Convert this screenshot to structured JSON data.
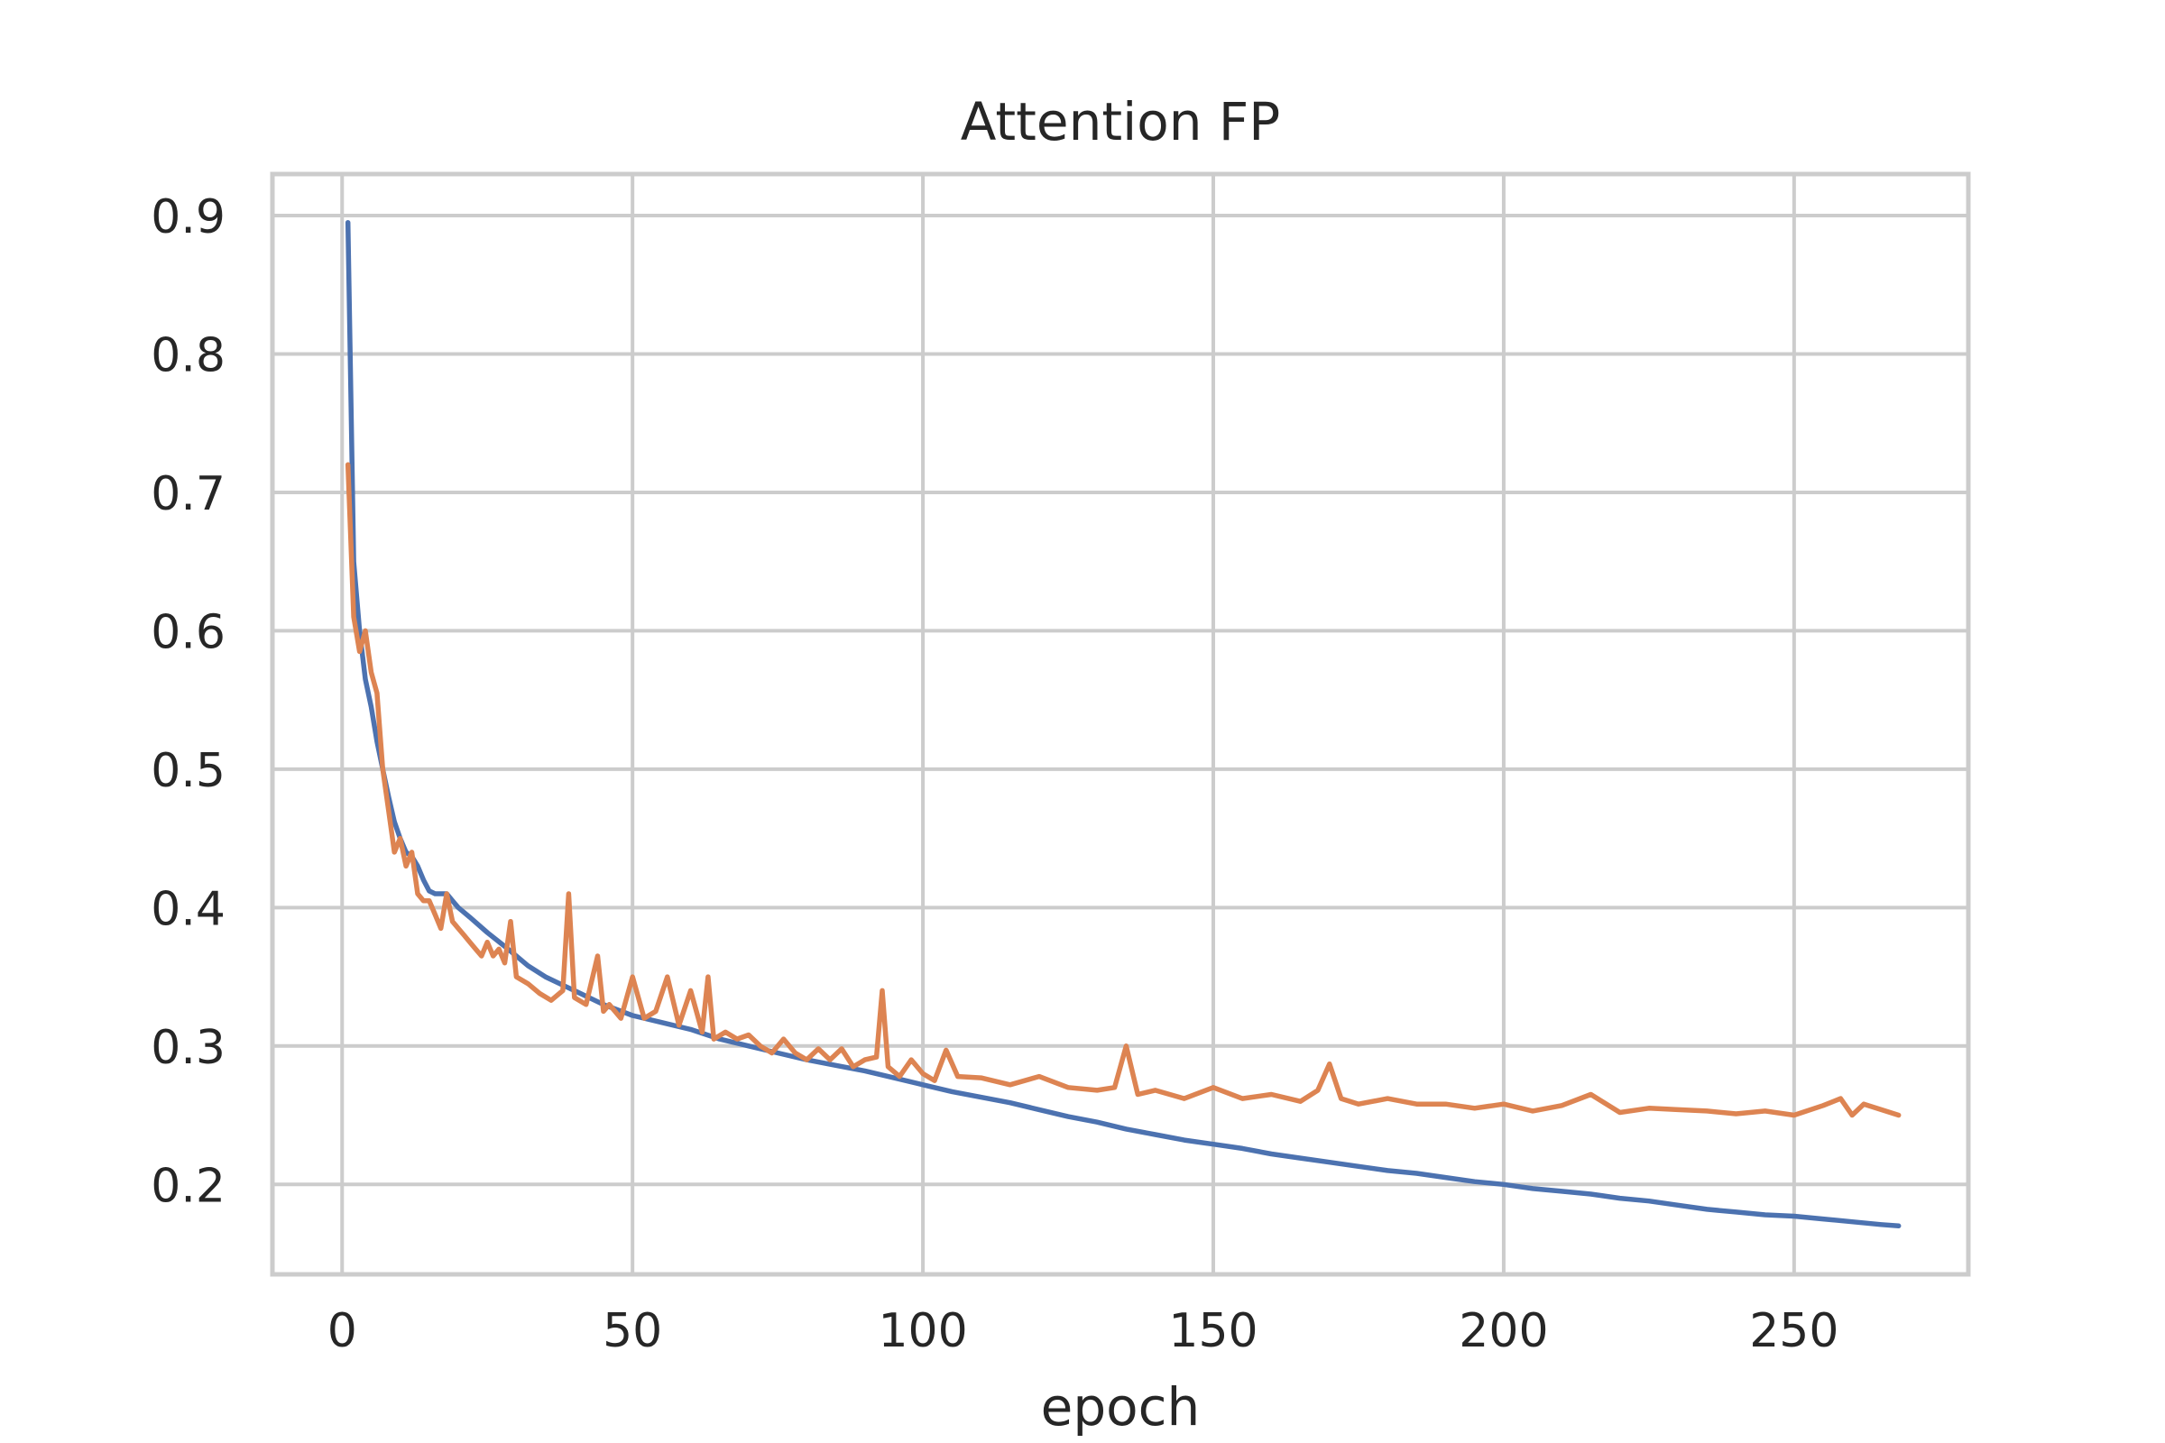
{
  "chart_data": {
    "type": "line",
    "title": "Attention FP",
    "xlabel": "epoch",
    "ylabel": "",
    "xlim": [
      -12,
      280
    ],
    "ylim": [
      0.135,
      0.93
    ],
    "xticks": [
      0,
      50,
      100,
      150,
      200,
      250
    ],
    "xtick_labels": [
      "0",
      "50",
      "100",
      "150",
      "200",
      "250"
    ],
    "yticks": [
      0.2,
      0.3,
      0.4,
      0.5,
      0.6,
      0.7,
      0.8,
      0.9
    ],
    "ytick_labels": [
      "0.2",
      "0.3",
      "0.4",
      "0.5",
      "0.6",
      "0.7",
      "0.8",
      "0.9"
    ],
    "grid": true,
    "legend": "none",
    "series": [
      {
        "color": "#4c72b0",
        "x": [
          1,
          2,
          3,
          4,
          5,
          6,
          7,
          8,
          9,
          10,
          11,
          12,
          13,
          14,
          15,
          16,
          17,
          18,
          19,
          20,
          22,
          25,
          28,
          30,
          32,
          35,
          38,
          40,
          45,
          50,
          55,
          60,
          65,
          70,
          75,
          80,
          85,
          90,
          95,
          100,
          105,
          110,
          115,
          120,
          125,
          130,
          135,
          140,
          145,
          150,
          155,
          160,
          165,
          170,
          175,
          180,
          185,
          190,
          195,
          200,
          205,
          210,
          215,
          220,
          225,
          230,
          235,
          240,
          245,
          250,
          255,
          260,
          265,
          268
        ],
        "y": [
          0.895,
          0.65,
          0.6,
          0.565,
          0.545,
          0.52,
          0.5,
          0.48,
          0.462,
          0.45,
          0.44,
          0.437,
          0.43,
          0.42,
          0.412,
          0.41,
          0.41,
          0.41,
          0.405,
          0.4,
          0.393,
          0.382,
          0.372,
          0.365,
          0.358,
          0.35,
          0.344,
          0.34,
          0.33,
          0.322,
          0.317,
          0.312,
          0.305,
          0.3,
          0.295,
          0.29,
          0.286,
          0.282,
          0.277,
          0.272,
          0.267,
          0.263,
          0.259,
          0.254,
          0.249,
          0.245,
          0.24,
          0.236,
          0.232,
          0.229,
          0.226,
          0.222,
          0.219,
          0.216,
          0.213,
          0.21,
          0.208,
          0.205,
          0.202,
          0.2,
          0.197,
          0.195,
          0.193,
          0.19,
          0.188,
          0.185,
          0.182,
          0.18,
          0.178,
          0.177,
          0.175,
          0.173,
          0.171,
          0.17
        ]
      },
      {
        "color": "#dd8452",
        "x": [
          1,
          2,
          3,
          4,
          5,
          6,
          7,
          8,
          9,
          10,
          11,
          12,
          13,
          14,
          15,
          16,
          17,
          18,
          19,
          20,
          21,
          22,
          23,
          24,
          25,
          26,
          27,
          28,
          29,
          30,
          32,
          34,
          36,
          38,
          39,
          40,
          42,
          44,
          45,
          46,
          48,
          50,
          52,
          54,
          56,
          58,
          60,
          62,
          63,
          64,
          66,
          68,
          70,
          72,
          74,
          76,
          78,
          80,
          82,
          84,
          86,
          88,
          90,
          92,
          93,
          94,
          96,
          98,
          100,
          102,
          104,
          106,
          110,
          115,
          120,
          125,
          130,
          133,
          135,
          137,
          140,
          145,
          150,
          155,
          160,
          165,
          168,
          170,
          172,
          175,
          180,
          185,
          190,
          195,
          200,
          205,
          210,
          215,
          220,
          225,
          230,
          235,
          240,
          245,
          250,
          255,
          258,
          260,
          262,
          265,
          268
        ],
        "y": [
          0.72,
          0.61,
          0.585,
          0.6,
          0.57,
          0.555,
          0.5,
          0.47,
          0.44,
          0.45,
          0.43,
          0.44,
          0.41,
          0.405,
          0.405,
          0.395,
          0.385,
          0.41,
          0.39,
          0.385,
          0.38,
          0.375,
          0.37,
          0.365,
          0.375,
          0.365,
          0.37,
          0.36,
          0.39,
          0.35,
          0.345,
          0.338,
          0.333,
          0.34,
          0.41,
          0.335,
          0.33,
          0.365,
          0.325,
          0.33,
          0.32,
          0.35,
          0.32,
          0.325,
          0.35,
          0.315,
          0.34,
          0.31,
          0.35,
          0.305,
          0.31,
          0.305,
          0.308,
          0.3,
          0.295,
          0.305,
          0.295,
          0.29,
          0.298,
          0.29,
          0.298,
          0.285,
          0.29,
          0.292,
          0.34,
          0.285,
          0.278,
          0.29,
          0.28,
          0.275,
          0.297,
          0.278,
          0.277,
          0.272,
          0.278,
          0.27,
          0.268,
          0.27,
          0.3,
          0.265,
          0.268,
          0.262,
          0.27,
          0.262,
          0.265,
          0.26,
          0.268,
          0.287,
          0.262,
          0.258,
          0.262,
          0.258,
          0.258,
          0.255,
          0.258,
          0.253,
          0.257,
          0.265,
          0.252,
          0.255,
          0.254,
          0.253,
          0.251,
          0.253,
          0.25,
          0.257,
          0.262,
          0.25,
          0.258,
          0.254,
          0.25
        ]
      }
    ]
  }
}
